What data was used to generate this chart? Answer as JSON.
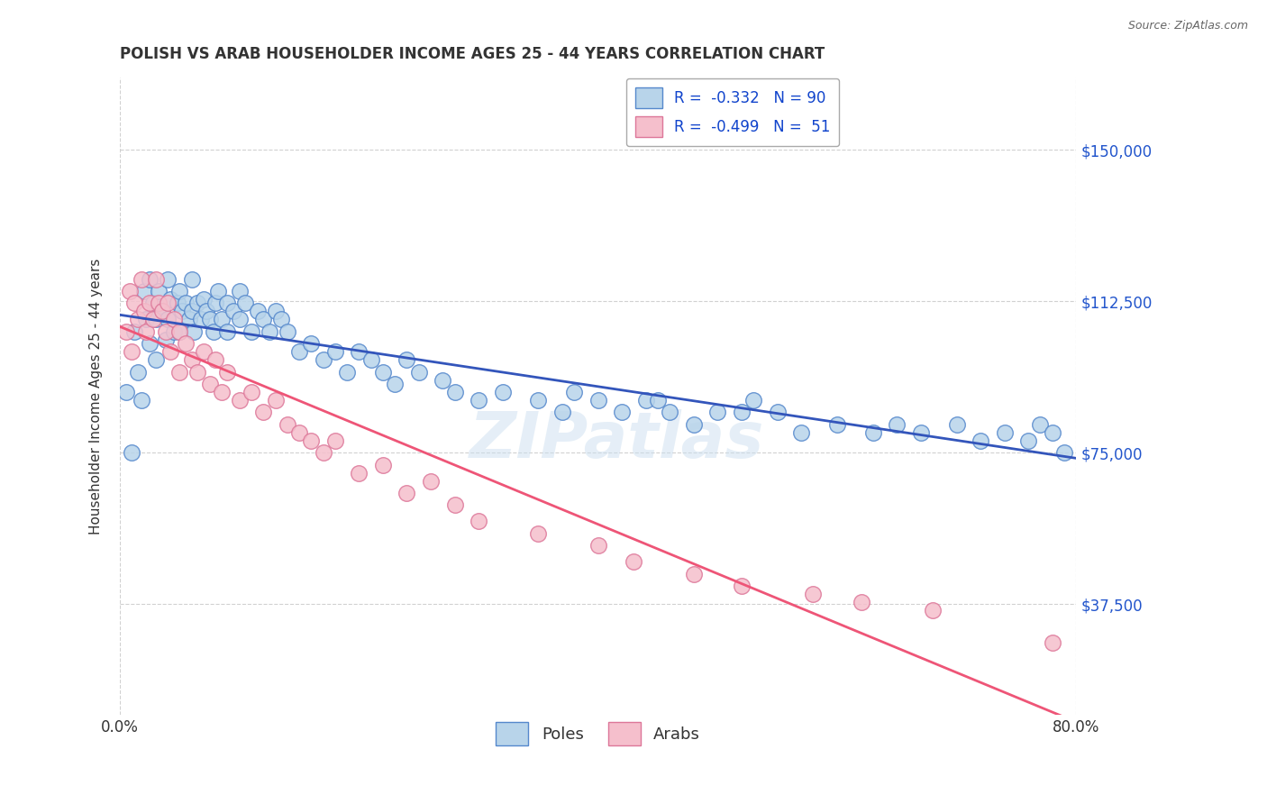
{
  "title": "POLISH VS ARAB HOUSEHOLDER INCOME AGES 25 - 44 YEARS CORRELATION CHART",
  "source": "Source: ZipAtlas.com",
  "ylabel_label": "Householder Income Ages 25 - 44 years",
  "ytick_labels": [
    "$37,500",
    "$75,000",
    "$112,500",
    "$150,000"
  ],
  "ytick_values": [
    37500,
    75000,
    112500,
    150000
  ],
  "ylim": [
    10000,
    168000
  ],
  "xlim": [
    0.0,
    0.8
  ],
  "poles_color": "#b8d4ea",
  "arabs_color": "#f5bfcc",
  "poles_edge": "#5588cc",
  "arabs_edge": "#dd7799",
  "trend_poles_color": "#3355bb",
  "trend_arabs_color": "#ee5577",
  "watermark": "ZIPatlas",
  "poles_x": [
    0.005,
    0.01,
    0.012,
    0.015,
    0.018,
    0.02,
    0.022,
    0.025,
    0.025,
    0.028,
    0.03,
    0.03,
    0.032,
    0.035,
    0.038,
    0.04,
    0.04,
    0.042,
    0.045,
    0.048,
    0.05,
    0.05,
    0.052,
    0.055,
    0.058,
    0.06,
    0.06,
    0.062,
    0.065,
    0.068,
    0.07,
    0.072,
    0.075,
    0.078,
    0.08,
    0.082,
    0.085,
    0.09,
    0.09,
    0.095,
    0.1,
    0.1,
    0.105,
    0.11,
    0.115,
    0.12,
    0.125,
    0.13,
    0.135,
    0.14,
    0.15,
    0.16,
    0.17,
    0.18,
    0.19,
    0.2,
    0.21,
    0.22,
    0.23,
    0.24,
    0.25,
    0.27,
    0.28,
    0.3,
    0.32,
    0.35,
    0.37,
    0.38,
    0.4,
    0.42,
    0.44,
    0.46,
    0.48,
    0.5,
    0.53,
    0.55,
    0.57,
    0.6,
    0.63,
    0.65,
    0.67,
    0.7,
    0.72,
    0.74,
    0.76,
    0.77,
    0.78,
    0.79,
    0.45,
    0.52
  ],
  "poles_y": [
    90000,
    75000,
    105000,
    95000,
    88000,
    115000,
    108000,
    102000,
    118000,
    112000,
    108000,
    98000,
    115000,
    110000,
    103000,
    118000,
    108000,
    113000,
    105000,
    112000,
    115000,
    105000,
    110000,
    112000,
    108000,
    110000,
    118000,
    105000,
    112000,
    108000,
    113000,
    110000,
    108000,
    105000,
    112000,
    115000,
    108000,
    112000,
    105000,
    110000,
    115000,
    108000,
    112000,
    105000,
    110000,
    108000,
    105000,
    110000,
    108000,
    105000,
    100000,
    102000,
    98000,
    100000,
    95000,
    100000,
    98000,
    95000,
    92000,
    98000,
    95000,
    93000,
    90000,
    88000,
    90000,
    88000,
    85000,
    90000,
    88000,
    85000,
    88000,
    85000,
    82000,
    85000,
    88000,
    85000,
    80000,
    82000,
    80000,
    82000,
    80000,
    82000,
    78000,
    80000,
    78000,
    82000,
    80000,
    75000,
    88000,
    85000
  ],
  "arabs_x": [
    0.005,
    0.008,
    0.01,
    0.012,
    0.015,
    0.018,
    0.02,
    0.022,
    0.025,
    0.028,
    0.03,
    0.032,
    0.035,
    0.038,
    0.04,
    0.042,
    0.045,
    0.05,
    0.05,
    0.055,
    0.06,
    0.065,
    0.07,
    0.075,
    0.08,
    0.085,
    0.09,
    0.1,
    0.11,
    0.12,
    0.13,
    0.14,
    0.15,
    0.16,
    0.17,
    0.18,
    0.2,
    0.22,
    0.24,
    0.26,
    0.28,
    0.3,
    0.35,
    0.4,
    0.43,
    0.48,
    0.52,
    0.58,
    0.62,
    0.68,
    0.78
  ],
  "arabs_y": [
    105000,
    115000,
    100000,
    112000,
    108000,
    118000,
    110000,
    105000,
    112000,
    108000,
    118000,
    112000,
    110000,
    105000,
    112000,
    100000,
    108000,
    105000,
    95000,
    102000,
    98000,
    95000,
    100000,
    92000,
    98000,
    90000,
    95000,
    88000,
    90000,
    85000,
    88000,
    82000,
    80000,
    78000,
    75000,
    78000,
    70000,
    72000,
    65000,
    68000,
    62000,
    58000,
    55000,
    52000,
    48000,
    45000,
    42000,
    40000,
    38000,
    36000,
    28000
  ]
}
